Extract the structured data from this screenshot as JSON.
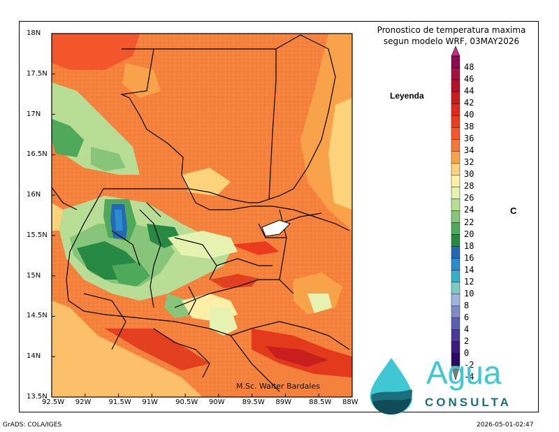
{
  "title": {
    "line1": "Pronostico de temperatura maxima",
    "line2": "segun modelo WRF, 03MAY2026"
  },
  "legend": {
    "label": "Leyenda",
    "unit": "C",
    "levels": [
      {
        "value": "48",
        "color": "#8b0a50"
      },
      {
        "value": "46",
        "color": "#a3123e"
      },
      {
        "value": "44",
        "color": "#b5102a"
      },
      {
        "value": "42",
        "color": "#c81e1e"
      },
      {
        "value": "40",
        "color": "#dc2a1c"
      },
      {
        "value": "38",
        "color": "#ec3b1e"
      },
      {
        "value": "36",
        "color": "#f2562a"
      },
      {
        "value": "34",
        "color": "#f57838"
      },
      {
        "value": "32",
        "color": "#f8a24a"
      },
      {
        "value": "30",
        "color": "#fcd27a"
      },
      {
        "value": "28",
        "color": "#fdf0a6"
      },
      {
        "value": "26",
        "color": "#e6f2b0"
      },
      {
        "value": "24",
        "color": "#b8dd94"
      },
      {
        "value": "22",
        "color": "#86c57a"
      },
      {
        "value": "20",
        "color": "#4eaa5a"
      },
      {
        "value": "18",
        "color": "#268a44"
      },
      {
        "value": "16",
        "color": "#2468b4"
      },
      {
        "value": "14",
        "color": "#2a8ccc"
      },
      {
        "value": "12",
        "color": "#39aec8"
      },
      {
        "value": "10",
        "color": "#7ccbc3"
      },
      {
        "value": "8",
        "color": "#9fb4dc"
      },
      {
        "value": "6",
        "color": "#7f8bc6"
      },
      {
        "value": "4",
        "color": "#5c5fae"
      },
      {
        "value": "2",
        "color": "#4a3a98"
      },
      {
        "value": "0",
        "color": "#3c1a80"
      },
      {
        "value": "-2",
        "color": "#2a0c62"
      },
      {
        "value": "-4",
        "color": "#7c7c7c"
      }
    ],
    "top_arrow_color": "#c0308a"
  },
  "axes": {
    "x_ticks": [
      "92.5W",
      "92W",
      "91.5W",
      "91W",
      "90.5W",
      "90W",
      "89.5W",
      "89W",
      "88.5W",
      "88W"
    ],
    "y_ticks": [
      "18N",
      "17.5N",
      "17N",
      "16.5N",
      "16N",
      "15.5N",
      "15N",
      "14.5N",
      "14N",
      "13.5N"
    ],
    "x_range": [
      -92.5,
      -88.0
    ],
    "y_range": [
      13.5,
      18.0
    ]
  },
  "credit": "M.Sc. Walter Bardales",
  "logo": {
    "word1": "Agua",
    "word2": "CONSULTA"
  },
  "footer": {
    "left": "GrADS: COLA/IGES",
    "right": "2026-05-01-02:47"
  }
}
